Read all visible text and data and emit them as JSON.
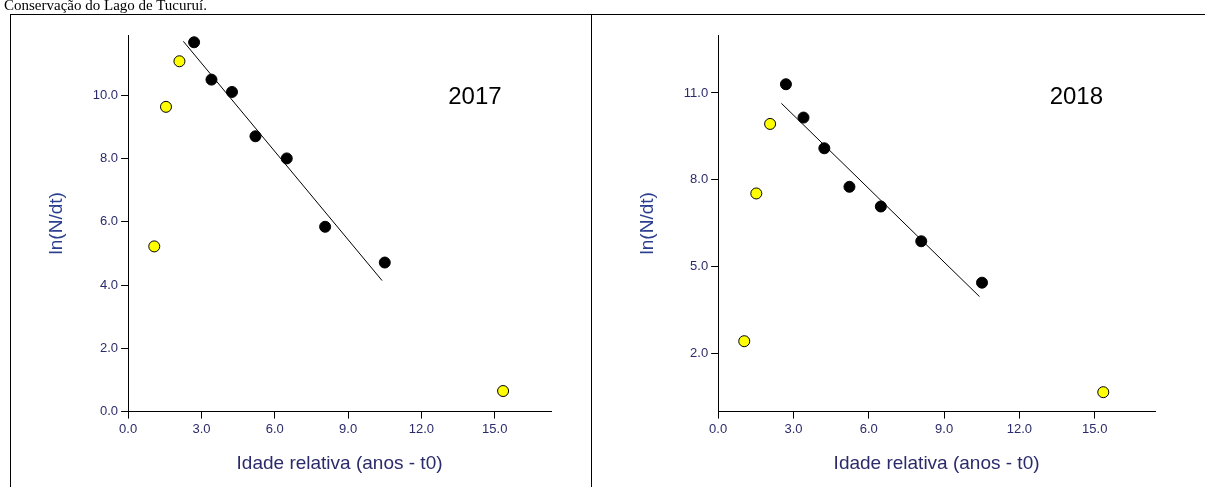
{
  "chart_data": [
    {
      "type": "scatter",
      "title": "Conservação do Lago de Tucuruí.",
      "annotations": [
        "2017"
      ],
      "xlabel": "Idade relativa (anos - t0)",
      "ylabel": "ln(N/dt)",
      "xlim": [
        0,
        17.3
      ],
      "xticks": [
        {
          "value": 0,
          "label": "0.0"
        },
        {
          "value": 3,
          "label": "3.0"
        },
        {
          "value": 6,
          "label": "6.0"
        },
        {
          "value": 9,
          "label": "9.0"
        },
        {
          "value": 12,
          "label": "12.0"
        },
        {
          "value": 15,
          "label": "15.0"
        }
      ],
      "ylim": [
        0,
        11.9
      ],
      "yticks": [
        {
          "value": 0,
          "label": "0.0"
        },
        {
          "value": 2,
          "label": "2.0"
        },
        {
          "value": 4,
          "label": "4.0"
        },
        {
          "value": 6,
          "label": "6.0"
        },
        {
          "value": 8,
          "label": "8.0"
        },
        {
          "value": 10,
          "label": "10.0"
        }
      ],
      "grid": false,
      "legend": false,
      "marker": "circle",
      "series": [
        {
          "type": "scatter",
          "color": "#ffff00",
          "x": [
            1.07,
            1.55,
            2.1,
            15.34
          ],
          "values": [
            5.22,
            9.63,
            11.07,
            0.65
          ]
        },
        {
          "type": "scatter",
          "color": "#000000",
          "x": [
            2.7,
            3.41,
            4.25,
            5.21,
            6.49,
            8.06,
            10.5
          ],
          "values": [
            11.67,
            10.49,
            10.1,
            8.7,
            8.0,
            5.84,
            4.71
          ]
        },
        {
          "type": "line",
          "color": "#000000",
          "marker": "none",
          "x": [
            2.26,
            10.39
          ],
          "values": [
            11.7,
            4.14
          ]
        }
      ]
    },
    {
      "type": "scatter",
      "annotations": [
        "2018"
      ],
      "xlabel": "Idade relativa (anos - t0)",
      "ylabel": "ln(N/dt)",
      "xlim": [
        0,
        17.4
      ],
      "xticks": [
        {
          "value": 0,
          "label": "0.0"
        },
        {
          "value": 3,
          "label": "3.0"
        },
        {
          "value": 6,
          "label": "6.0"
        },
        {
          "value": 9,
          "label": "9.0"
        },
        {
          "value": 12,
          "label": "12.0"
        },
        {
          "value": 15,
          "label": "15.0"
        }
      ],
      "ylim": [
        0,
        13
      ],
      "yticks": [
        {
          "value": 2,
          "label": "2.0"
        },
        {
          "value": 5,
          "label": "5.0"
        },
        {
          "value": 8,
          "label": "8.0"
        },
        {
          "value": 11,
          "label": "11.0"
        }
      ],
      "grid": false,
      "legend": false,
      "marker": "circle",
      "series": [
        {
          "type": "scatter",
          "color": "#ffff00",
          "x": [
            1.04,
            1.52,
            2.07,
            15.34
          ],
          "values": [
            2.43,
            7.53,
            9.93,
            0.67
          ]
        },
        {
          "type": "scatter",
          "color": "#000000",
          "x": [
            2.7,
            3.4,
            4.23,
            5.23,
            6.48,
            8.09,
            10.51
          ],
          "values": [
            11.3,
            10.15,
            9.09,
            7.76,
            7.08,
            5.88,
            4.45
          ]
        },
        {
          "type": "line",
          "color": "#000000",
          "marker": "none",
          "x": [
            2.52,
            10.41
          ],
          "values": [
            10.64,
            3.97
          ]
        }
      ]
    }
  ]
}
